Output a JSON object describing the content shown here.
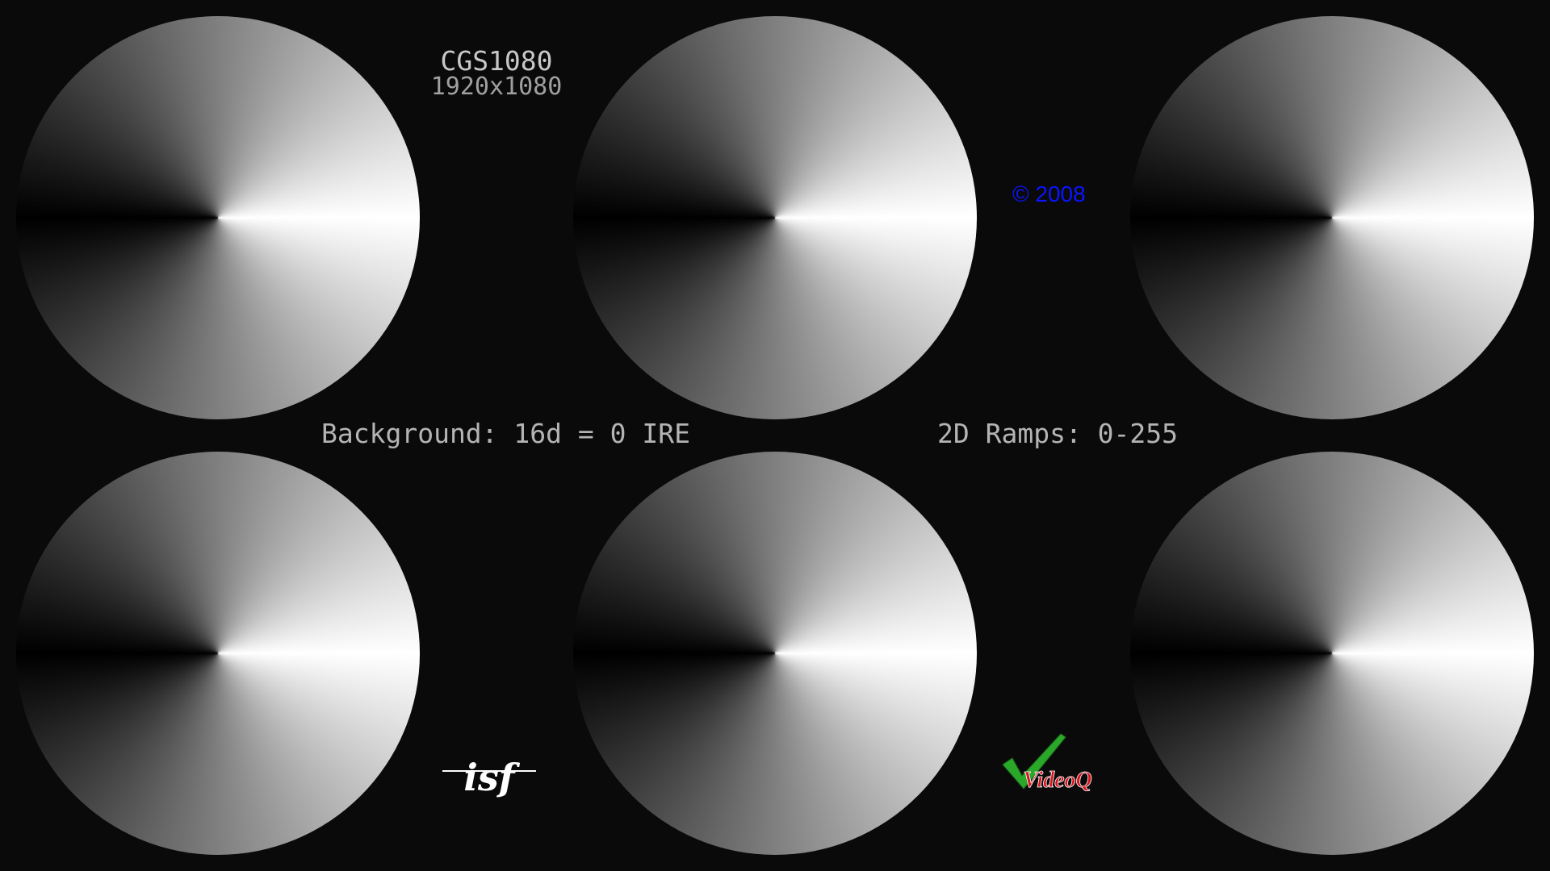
{
  "pattern": {
    "title": "CGS1080",
    "resolution": "1920x1080",
    "background_label": "Background: 16d = 0 IRE",
    "ramps_label": "2D Ramps: 0-255",
    "copyright": "© 2008"
  },
  "logos": {
    "isf": "isf",
    "videoq": "VideoQ"
  },
  "colors": {
    "background": "#0a0a0a",
    "label_gray": "#b4b4b4",
    "copyright_blue": "#0a14ff",
    "videoq_green": "#2aa82a",
    "videoq_red": "#d4141e"
  },
  "discs": {
    "count": 6,
    "gradient": "conic 0-255 gray ramp"
  }
}
